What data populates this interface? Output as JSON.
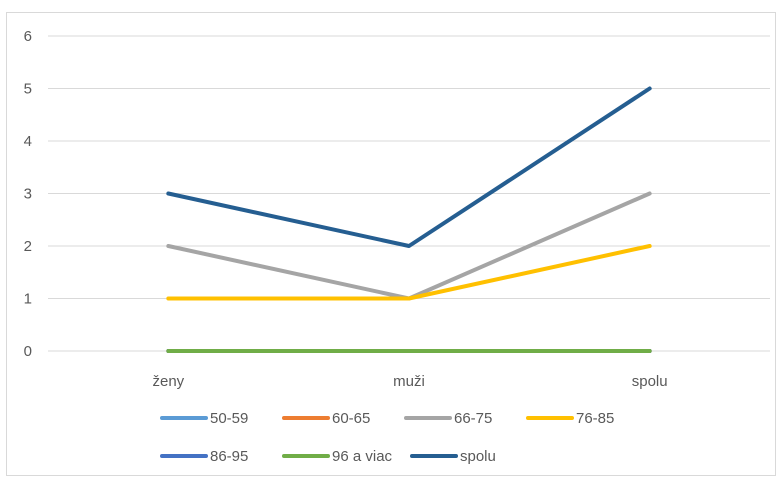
{
  "chart_data": {
    "type": "line",
    "categories": [
      "ženy",
      "muži",
      "spolu"
    ],
    "ylim": [
      0,
      6
    ],
    "y_ticks": [
      "0",
      "1",
      "2",
      "3",
      "4",
      "5",
      "6"
    ],
    "grid": true,
    "legend_position": "bottom",
    "series": [
      {
        "name": "50-59",
        "values": [
          0,
          0,
          0
        ],
        "color": "#5b9bd5"
      },
      {
        "name": "60-65",
        "values": [
          0,
          0,
          0
        ],
        "color": "#ed7d31"
      },
      {
        "name": "66-75",
        "values": [
          2,
          1,
          3
        ],
        "color": "#a5a5a5"
      },
      {
        "name": "76-85",
        "values": [
          1,
          1,
          2
        ],
        "color": "#ffc000"
      },
      {
        "name": "86-95",
        "values": [
          0,
          0,
          0
        ],
        "color": "#4472c4"
      },
      {
        "name": "96 a viac",
        "values": [
          0,
          0,
          0
        ],
        "color": "#70ad47"
      },
      {
        "name": "spolu",
        "values": [
          3,
          2,
          5
        ],
        "color": "#255e91"
      }
    ]
  }
}
